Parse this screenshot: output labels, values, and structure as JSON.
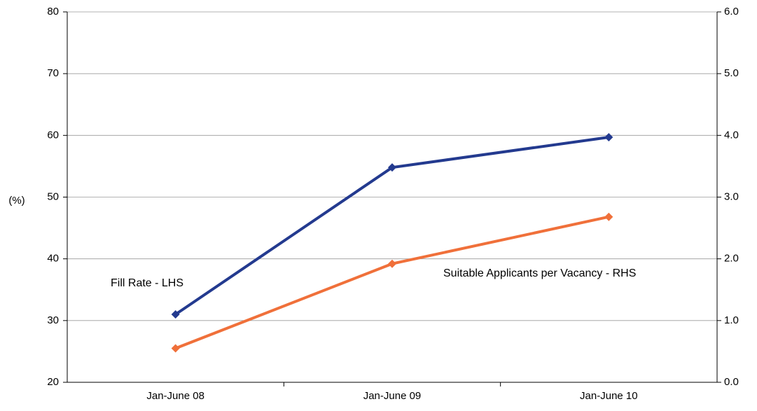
{
  "chart_data": {
    "type": "line",
    "categories": [
      "Jan-June 08",
      "Jan-June 09",
      "Jan-June 10"
    ],
    "y_left": {
      "label": "(%)",
      "ylim": [
        20,
        80
      ],
      "ticks": [
        "20",
        "30",
        "40",
        "50",
        "60",
        "70",
        "80"
      ]
    },
    "y_right": {
      "label": "",
      "ylim": [
        0,
        6
      ],
      "ticks": [
        "0.0",
        "1.0",
        "2.0",
        "3.0",
        "4.0",
        "5.0",
        "6.0"
      ]
    },
    "grid": true,
    "series": [
      {
        "name": "Fill Rate - LHS",
        "axis": "left",
        "color": "#233a8f",
        "values": [
          31,
          54.8,
          59.7
        ]
      },
      {
        "name": "Suitable Applicants per Vacancy - RHS",
        "axis": "right",
        "color": "#f0703a",
        "values": [
          0.55,
          1.92,
          2.68
        ]
      }
    ]
  }
}
